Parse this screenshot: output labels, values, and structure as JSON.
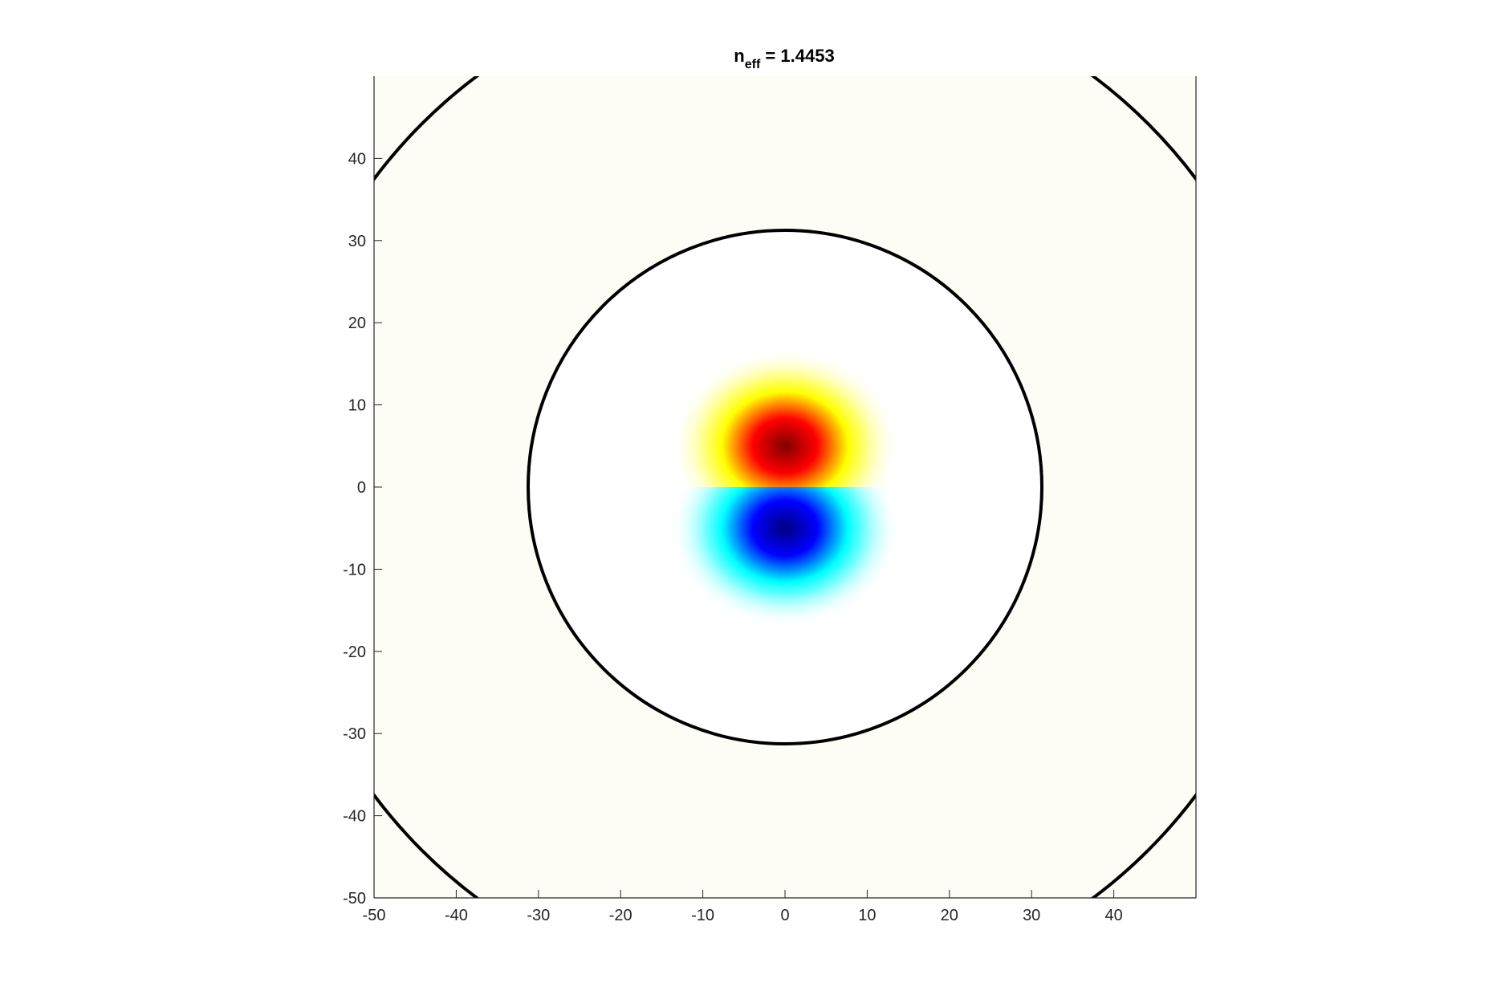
{
  "chart_data": {
    "type": "heatmap",
    "title": {
      "main": "n",
      "subscript": "eff",
      "suffix": " = 1.4453"
    },
    "xlabel": "",
    "ylabel": "",
    "xlim": [
      -50,
      50
    ],
    "ylim": [
      -50,
      50
    ],
    "x_ticks": [
      "-50",
      "-40",
      "-30",
      "-20",
      "-10",
      "0",
      "10",
      "20",
      "30",
      "40"
    ],
    "y_ticks": [
      "40",
      "30",
      "20",
      "10",
      "0",
      "-10",
      "-20",
      "-30",
      "-40",
      "-50"
    ],
    "x_tick_values": [
      -50,
      -40,
      -30,
      -20,
      -10,
      0,
      10,
      20,
      30,
      40
    ],
    "y_tick_values": [
      40,
      30,
      20,
      10,
      0,
      -10,
      -20,
      -30,
      -40,
      -50
    ],
    "grid": false,
    "colormap": "jet-like diverging (blue negative, white zero, red positive)",
    "mode_lobes": [
      {
        "name": "positive lobe",
        "center": [
          0,
          5
        ],
        "sign": 1,
        "colors": [
          "#ffff00",
          "#ff0000",
          "#800000"
        ]
      },
      {
        "name": "negative lobe",
        "center": [
          0,
          -5
        ],
        "sign": -1,
        "colors": [
          "#00ffff",
          "#0000ff",
          "#000080"
        ]
      }
    ],
    "circles": [
      {
        "name": "core boundary",
        "center": [
          0,
          0
        ],
        "radius": 31.25
      },
      {
        "name": "cladding boundary",
        "center": [
          0,
          0
        ],
        "radius": 62.5
      }
    ],
    "colors": {
      "background": "#fdfdf6",
      "core_fill": "#ffffff",
      "boundary": "#000000",
      "axis": "#262626"
    }
  }
}
